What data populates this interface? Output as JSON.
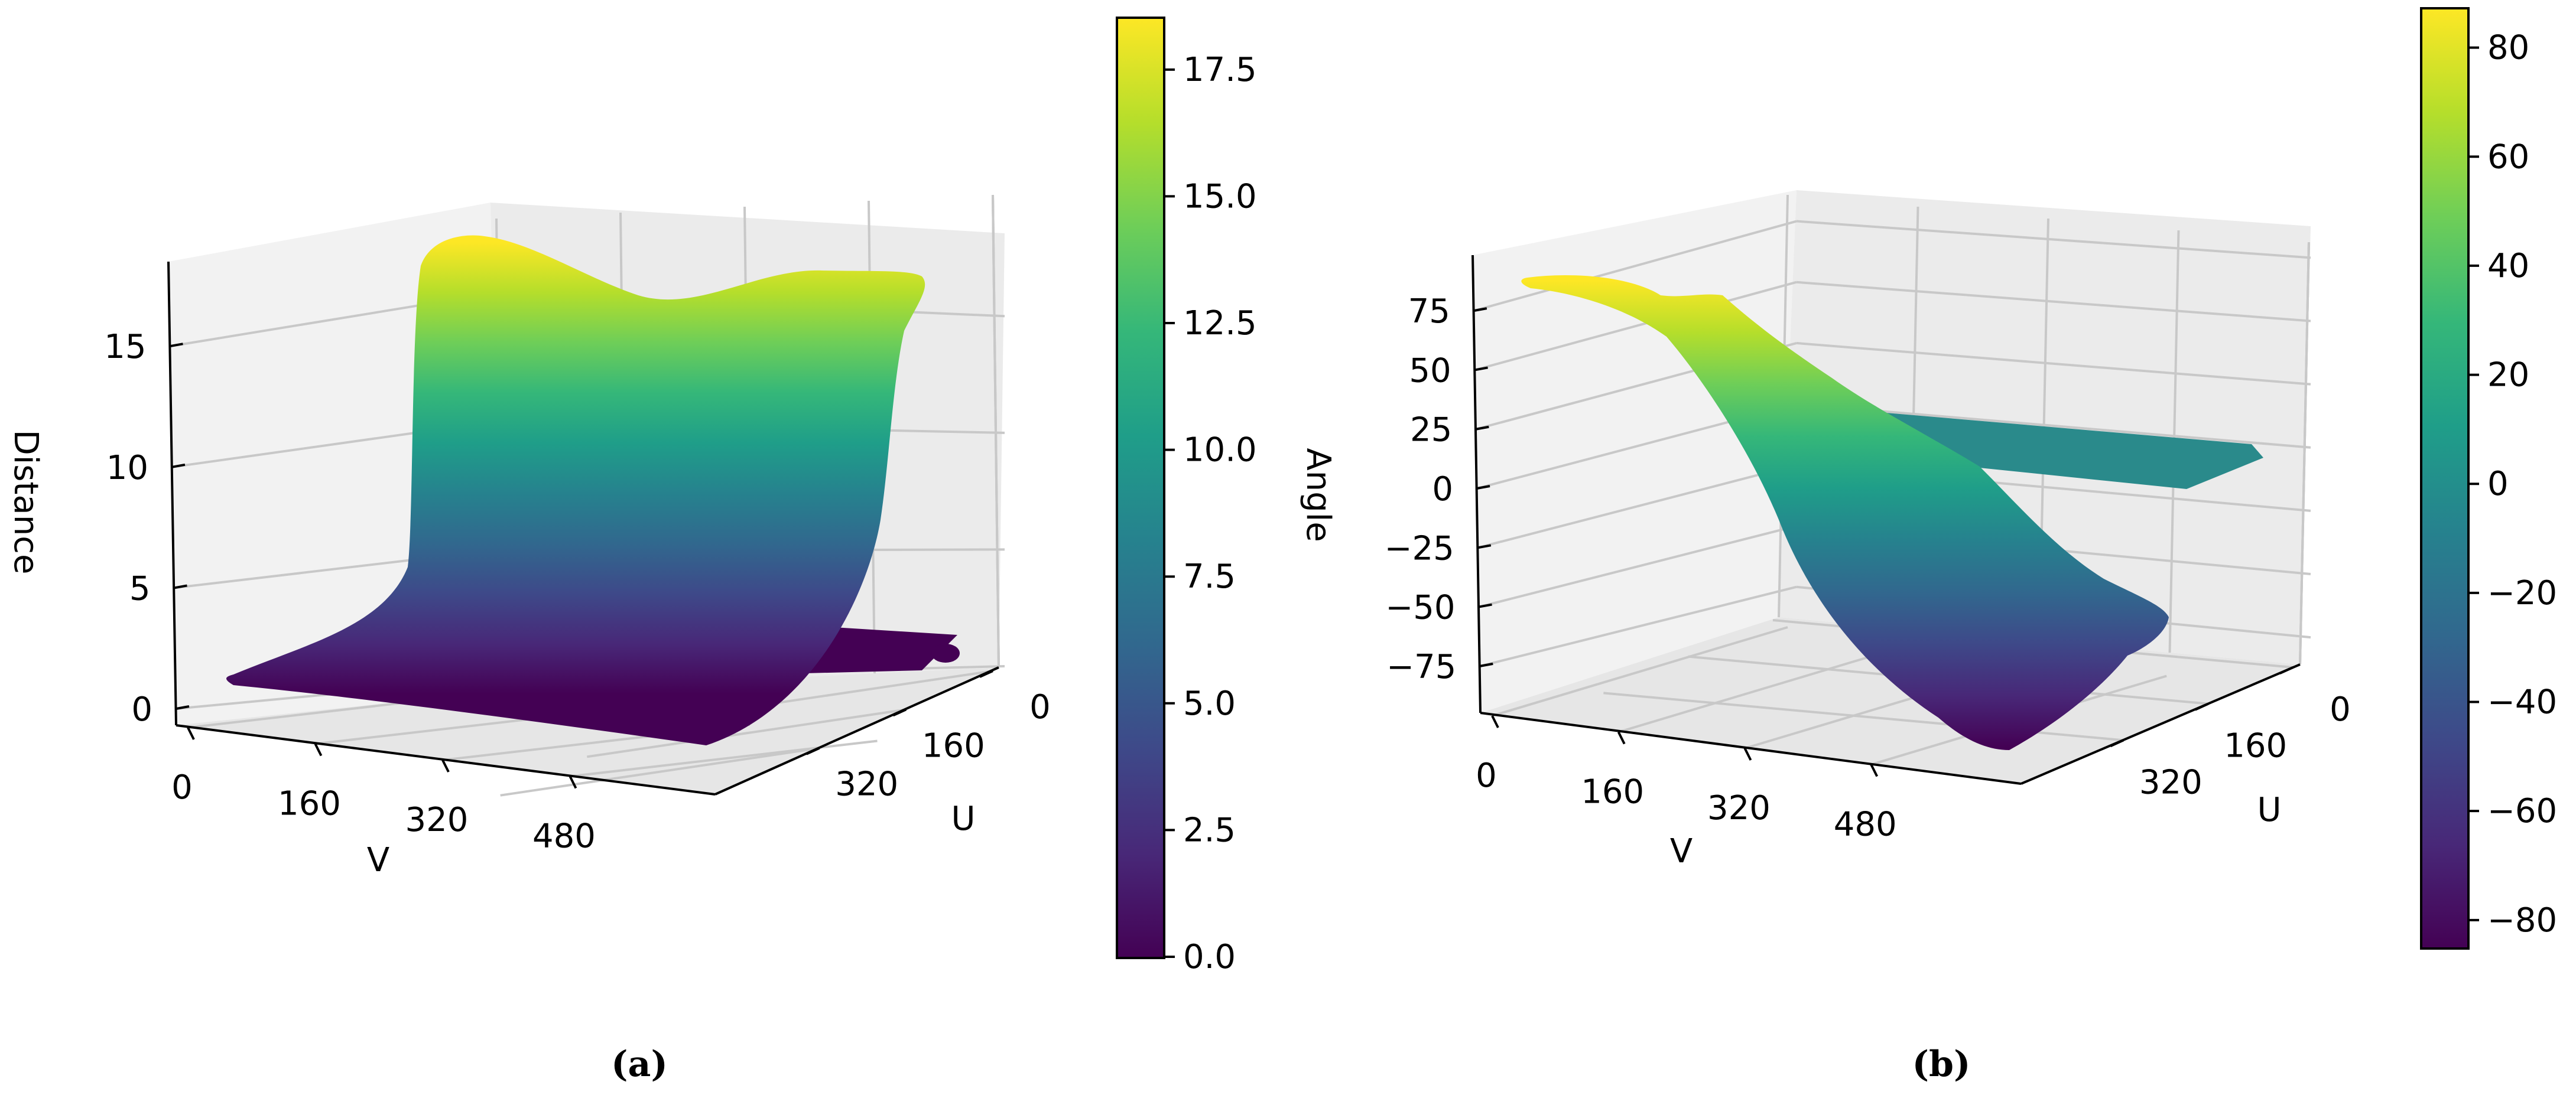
{
  "colormap": "viridis",
  "viridis_stops": [
    "#440154",
    "#482878",
    "#3e4989",
    "#31688e",
    "#26828e",
    "#1f9e89",
    "#35b779",
    "#6ece58",
    "#b5de2b",
    "#fde725"
  ],
  "chart_data": [
    {
      "type": "surface3d",
      "caption": "(a)",
      "xlabel": "V",
      "ylabel": "U",
      "zlabel": "Distance",
      "colorbar_label": "",
      "x_ticks": [
        "0",
        "160",
        "320",
        "480"
      ],
      "y_ticks": [
        "0",
        "160",
        "320"
      ],
      "z_ticks": [
        "0",
        "5",
        "10",
        "15"
      ],
      "colorbar_ticks": [
        "0.0",
        "2.5",
        "5.0",
        "7.5",
        "10.0",
        "12.5",
        "15.0",
        "17.5"
      ],
      "colorbar_range": [
        0.0,
        18.5
      ],
      "xlim": [
        0,
        640
      ],
      "ylim": [
        0,
        480
      ],
      "zlim": [
        0,
        18.5
      ],
      "grid": true,
      "surface": {
        "description_profile_v": [
          0,
          160,
          320,
          480,
          560,
          640
        ],
        "values_near_u0": [
          0,
          0.2,
          0.5,
          1.0,
          17.5,
          18.5
        ],
        "values_at_u480": [
          0,
          0.2,
          0.5,
          1.0,
          1.5,
          2.0
        ],
        "max": 18.5,
        "min": 0.0
      }
    },
    {
      "type": "surface3d",
      "caption": "(b)",
      "xlabel": "V",
      "ylabel": "U",
      "zlabel": "",
      "colorbar_label": "Angle",
      "x_ticks": [
        "0",
        "160",
        "320",
        "480"
      ],
      "y_ticks": [
        "0",
        "160",
        "320"
      ],
      "z_ticks": [
        "−75",
        "−50",
        "−25",
        "0",
        "25",
        "50",
        "75"
      ],
      "colorbar_ticks": [
        "−80",
        "−60",
        "−40",
        "−20",
        "0",
        "20",
        "40",
        "60",
        "80"
      ],
      "colorbar_range": [
        -85,
        87
      ],
      "xlim": [
        0,
        640
      ],
      "ylim": [
        0,
        480
      ],
      "zlim": [
        -85,
        87
      ],
      "grid": true,
      "surface": {
        "description_profile_v": [
          0,
          160,
          320,
          480,
          640
        ],
        "values_near_u0": [
          87,
          55,
          10,
          -40,
          -85
        ],
        "plateau_value": 0,
        "max": 87,
        "min": -85
      }
    }
  ]
}
